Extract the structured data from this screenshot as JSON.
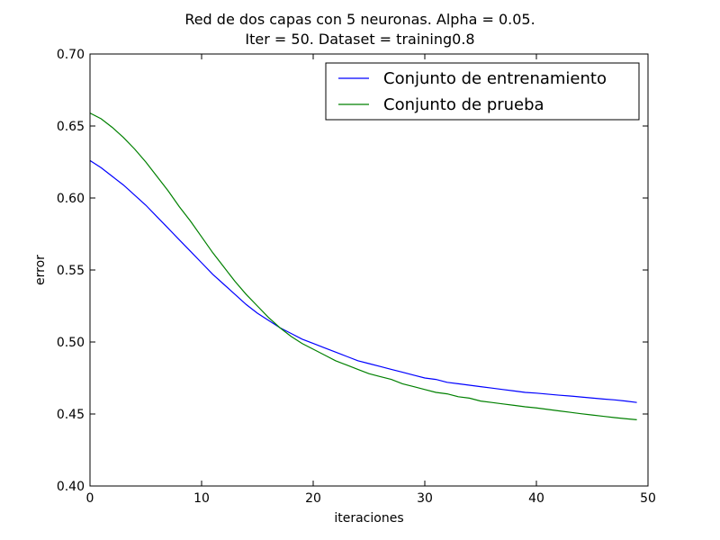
{
  "chart_data": {
    "type": "line",
    "title": "Red de dos capas con 5 neuronas. Alpha = 0.05.",
    "subtitle": "Iter = 50. Dataset = training0.8",
    "xlabel": "iteraciones",
    "ylabel": "error",
    "xlim": [
      0,
      50
    ],
    "ylim": [
      0.4,
      0.7
    ],
    "xticks": [
      0,
      10,
      20,
      30,
      40,
      50
    ],
    "xtick_labels": [
      "0",
      "10",
      "20",
      "30",
      "40",
      "50"
    ],
    "yticks": [
      0.4,
      0.45,
      0.5,
      0.55,
      0.6,
      0.65,
      0.7
    ],
    "ytick_labels": [
      "0.40",
      "0.45",
      "0.50",
      "0.55",
      "0.60",
      "0.65",
      "0.70"
    ],
    "grid": false,
    "legend_position": "top-right",
    "x": [
      0,
      1,
      2,
      3,
      4,
      5,
      6,
      7,
      8,
      9,
      10,
      11,
      12,
      13,
      14,
      15,
      16,
      17,
      18,
      19,
      20,
      21,
      22,
      23,
      24,
      25,
      26,
      27,
      28,
      29,
      30,
      31,
      32,
      33,
      34,
      35,
      36,
      37,
      38,
      39,
      40,
      41,
      42,
      43,
      44,
      45,
      46,
      47,
      48,
      49
    ],
    "series": [
      {
        "name": "Conjunto de entrenamiento",
        "color": "#0000ff",
        "values": [
          0.626,
          0.621,
          0.615,
          0.609,
          0.602,
          0.595,
          0.587,
          0.579,
          0.571,
          0.563,
          0.555,
          0.547,
          0.54,
          0.533,
          0.526,
          0.52,
          0.515,
          0.51,
          0.506,
          0.502,
          0.499,
          0.496,
          0.493,
          0.49,
          0.487,
          0.485,
          0.483,
          0.481,
          0.479,
          0.477,
          0.475,
          0.474,
          0.472,
          0.471,
          0.47,
          0.469,
          0.468,
          0.467,
          0.466,
          0.465,
          0.4645,
          0.4638,
          0.4631,
          0.4625,
          0.4618,
          0.4611,
          0.4604,
          0.4598,
          0.459,
          0.458
        ]
      },
      {
        "name": "Conjunto de prueba",
        "color": "#008000",
        "values": [
          0.659,
          0.655,
          0.649,
          0.642,
          0.634,
          0.625,
          0.615,
          0.605,
          0.594,
          0.584,
          0.573,
          0.562,
          0.552,
          0.542,
          0.533,
          0.525,
          0.517,
          0.51,
          0.504,
          0.499,
          0.495,
          0.491,
          0.487,
          0.484,
          0.481,
          0.478,
          0.476,
          0.474,
          0.471,
          0.469,
          0.467,
          0.465,
          0.464,
          0.462,
          0.461,
          0.459,
          0.458,
          0.457,
          0.456,
          0.455,
          0.4542,
          0.4532,
          0.4522,
          0.4512,
          0.4502,
          0.4493,
          0.4484,
          0.4475,
          0.4467,
          0.446
        ]
      }
    ]
  }
}
